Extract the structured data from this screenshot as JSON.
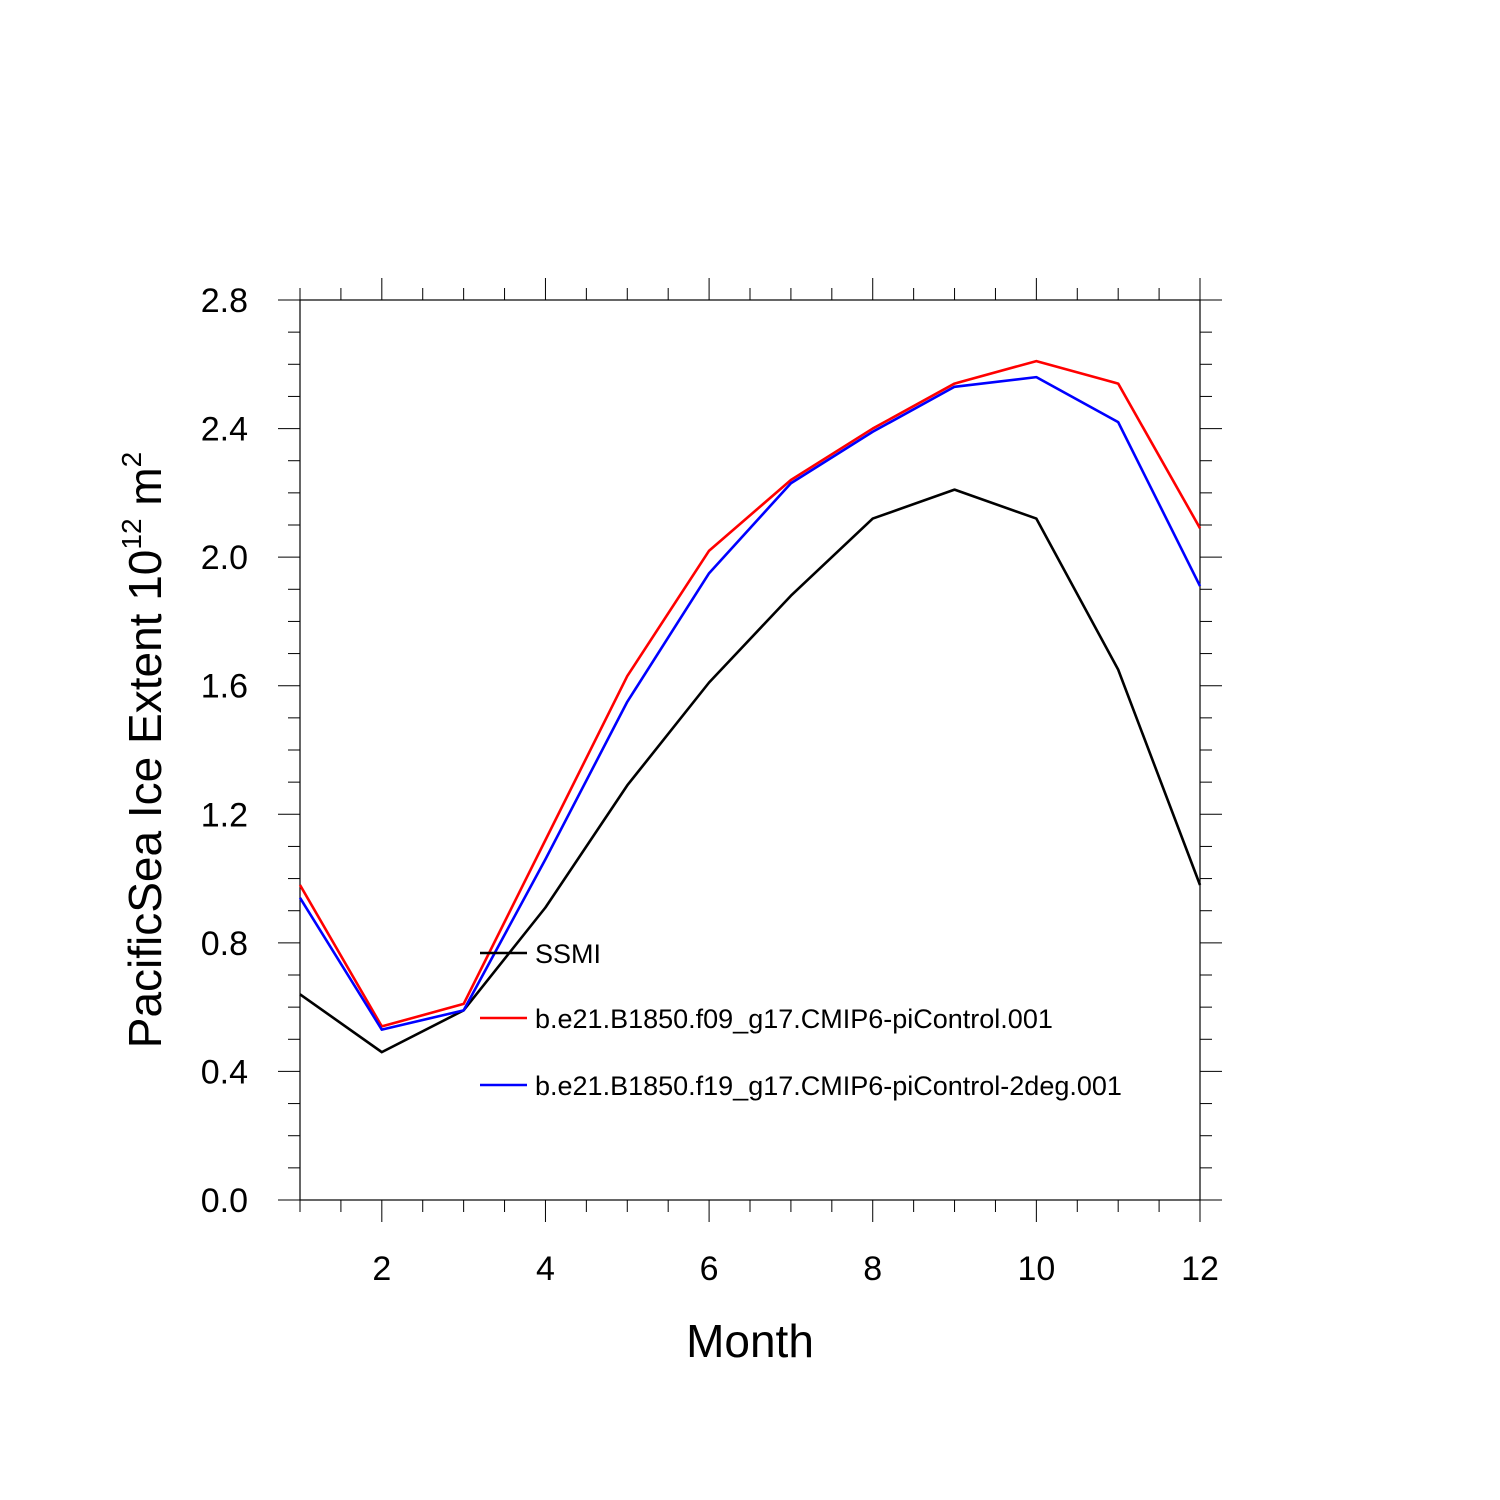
{
  "chart_data": {
    "type": "line",
    "title": "",
    "xlabel": "Month",
    "ylabel": {
      "prefix": "PacificSea Ice Extent 10",
      "exponent": "12",
      "unit": " m",
      "unit_exponent": "2"
    },
    "xlim": [
      1,
      12
    ],
    "ylim": [
      0.0,
      2.8
    ],
    "xticks": [
      2,
      4,
      6,
      8,
      10,
      12
    ],
    "xtick_labels": [
      "2",
      "4",
      "6",
      "8",
      "10",
      "12"
    ],
    "yticks": [
      0.0,
      0.4,
      0.8,
      1.2,
      1.6,
      2.0,
      2.4,
      2.8
    ],
    "ytick_labels": [
      "0.0",
      "0.4",
      "0.8",
      "1.2",
      "1.6",
      "2.0",
      "2.4",
      "2.8"
    ],
    "grid": false,
    "legend_position": "inside-center-left",
    "x": [
      1,
      2,
      3,
      4,
      5,
      6,
      7,
      8,
      9,
      10,
      11,
      12
    ],
    "series": [
      {
        "name": "SSMI",
        "color": "#000000",
        "values": [
          0.64,
          0.46,
          0.59,
          0.91,
          1.29,
          1.61,
          1.88,
          2.12,
          2.21,
          2.12,
          1.65,
          0.98
        ]
      },
      {
        "name": "b.e21.B1850.f09_g17.CMIP6-piControl.001",
        "color": "#ff0000",
        "values": [
          0.98,
          0.54,
          0.61,
          1.12,
          1.63,
          2.02,
          2.24,
          2.4,
          2.54,
          2.61,
          2.54,
          2.09
        ]
      },
      {
        "name": "b.e21.B1850.f19_g17.CMIP6-piControl-2deg.001",
        "color": "#0000ff",
        "values": [
          0.94,
          0.53,
          0.59,
          1.06,
          1.55,
          1.95,
          2.23,
          2.39,
          2.53,
          2.56,
          2.42,
          1.91
        ]
      }
    ]
  }
}
